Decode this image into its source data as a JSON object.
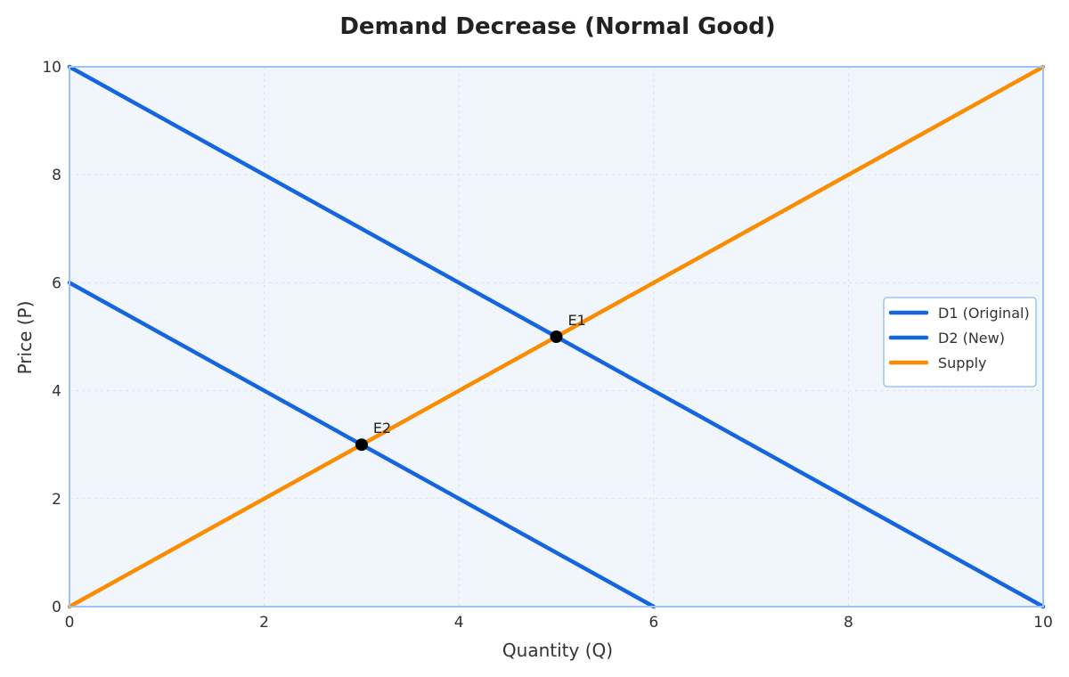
{
  "chart_data": {
    "type": "line",
    "title": "Demand Decrease (Normal Good)",
    "xlabel": "Quantity (Q)",
    "ylabel": "Price (P)",
    "xlim": [
      0,
      10
    ],
    "ylim": [
      0,
      10
    ],
    "x_ticks": [
      0,
      2,
      4,
      6,
      8,
      10
    ],
    "y_ticks": [
      0,
      2,
      4,
      6,
      8,
      10
    ],
    "grid": true,
    "legend_position": "center-right",
    "series": [
      {
        "name": "D1 (Original)",
        "color": "#1565e0",
        "x": [
          0,
          10
        ],
        "y": [
          10,
          0
        ]
      },
      {
        "name": "D2 (New)",
        "color": "#1565e0",
        "x": [
          0,
          6
        ],
        "y": [
          6,
          0
        ]
      },
      {
        "name": "Supply",
        "color": "#fb8c00",
        "x": [
          0,
          10
        ],
        "y": [
          0,
          10
        ]
      }
    ],
    "points": [
      {
        "label": "E1",
        "x": 5,
        "y": 5
      },
      {
        "label": "E2",
        "x": 3,
        "y": 3
      }
    ],
    "colors": {
      "plot_background": "#f1f6fc",
      "plot_border": "#9ec2f3",
      "point": "#000000"
    }
  }
}
